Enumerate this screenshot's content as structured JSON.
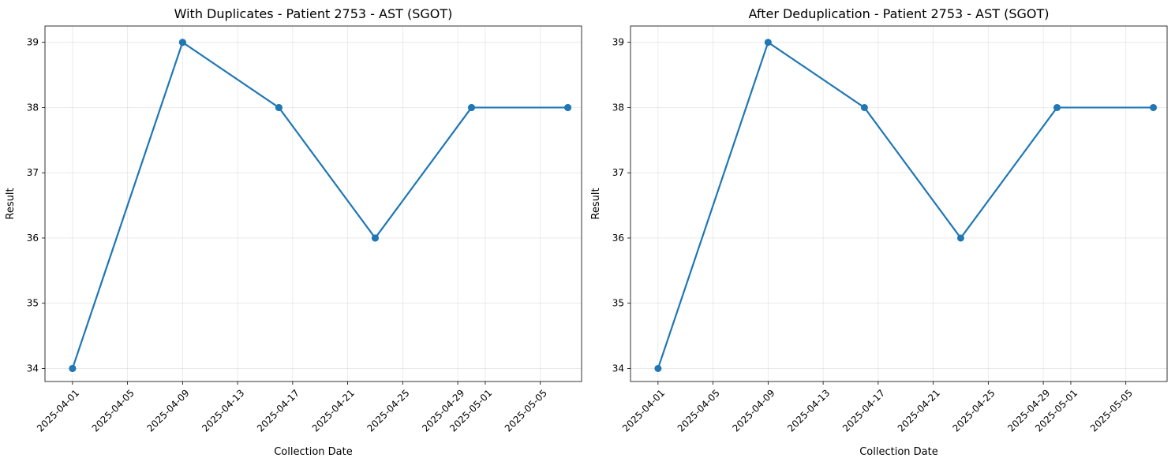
{
  "chart_data": [
    {
      "type": "line",
      "title": "With Duplicates - Patient 2753 - AST (SGOT)",
      "xlabel": "Collection Date",
      "ylabel": "Result",
      "grid": true,
      "xlim": [
        "2025-03-30",
        "2025-05-08"
      ],
      "ylim": [
        33.8,
        39.25
      ],
      "x_ticks": [
        "2025-04-01",
        "2025-04-05",
        "2025-04-09",
        "2025-04-13",
        "2025-04-17",
        "2025-04-21",
        "2025-04-25",
        "2025-04-29",
        "2025-05-01",
        "2025-05-05"
      ],
      "y_ticks": [
        34,
        35,
        36,
        37,
        38,
        39
      ],
      "color": "#1f77b4",
      "series": [
        {
          "x": [
            "2025-04-01",
            "2025-04-01",
            "2025-04-09",
            "2025-04-09",
            "2025-04-16",
            "2025-04-16",
            "2025-04-23",
            "2025-04-23",
            "2025-04-30",
            "2025-04-30",
            "2025-05-07",
            "2025-05-07"
          ],
          "values": [
            34,
            34,
            39,
            39,
            38,
            38,
            36,
            36,
            38,
            38,
            38,
            38
          ]
        }
      ]
    },
    {
      "type": "line",
      "title": "After Deduplication - Patient 2753 - AST (SGOT)",
      "xlabel": "Collection Date",
      "ylabel": "Result",
      "grid": true,
      "xlim": [
        "2025-03-30",
        "2025-05-08"
      ],
      "ylim": [
        33.8,
        39.25
      ],
      "x_ticks": [
        "2025-04-01",
        "2025-04-05",
        "2025-04-09",
        "2025-04-13",
        "2025-04-17",
        "2025-04-21",
        "2025-04-25",
        "2025-04-29",
        "2025-05-01",
        "2025-05-05"
      ],
      "y_ticks": [
        34,
        35,
        36,
        37,
        38,
        39
      ],
      "color": "#1f77b4",
      "series": [
        {
          "x": [
            "2025-04-01",
            "2025-04-09",
            "2025-04-16",
            "2025-04-23",
            "2025-04-30",
            "2025-05-07"
          ],
          "values": [
            34,
            39,
            38,
            36,
            38,
            38
          ]
        }
      ]
    }
  ]
}
